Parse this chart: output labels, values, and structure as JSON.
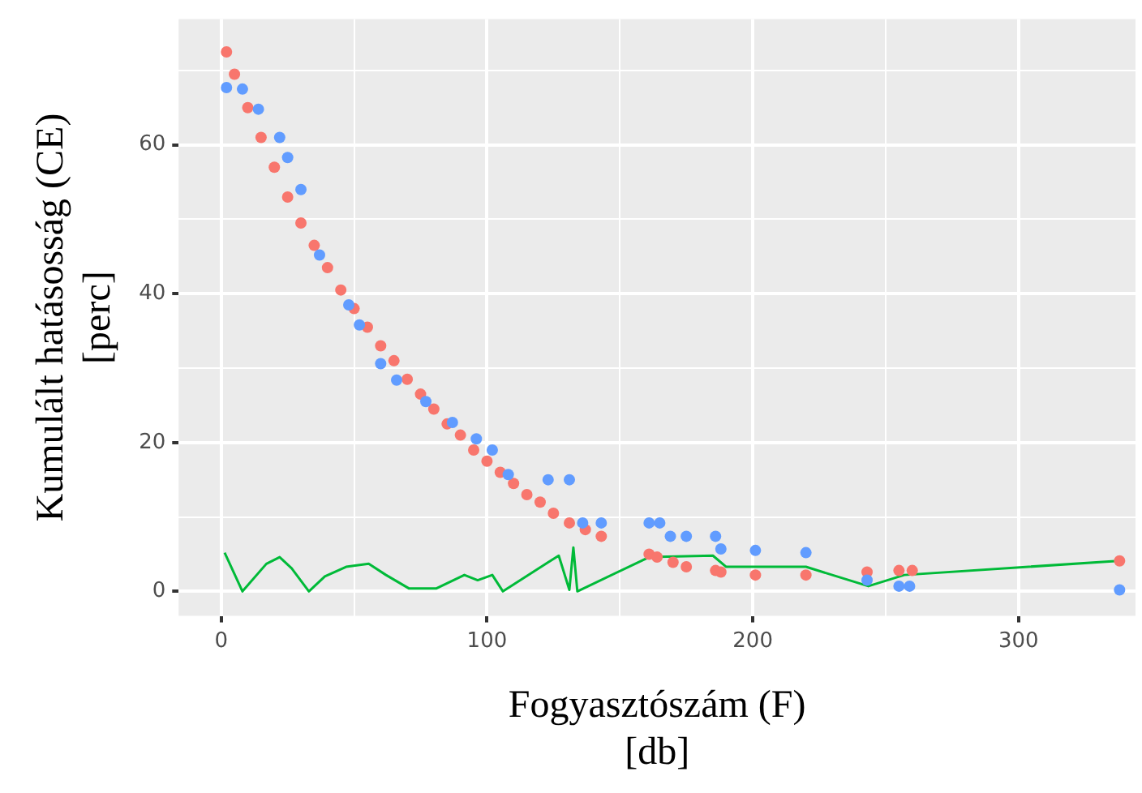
{
  "chart_data": {
    "type": "scatter",
    "xlabel": "Fogyasztószám (F)\n[db]",
    "ylabel": "Kumulált hatásosság (CE)\n[perc]",
    "xlim": [
      -16,
      344
    ],
    "ylim": [
      -3.3,
      76.9
    ],
    "xticks": [
      0,
      {
        "value": 50,
        "label": null
      },
      100,
      {
        "value": 150,
        "label": null
      },
      200,
      {
        "value": 250,
        "label": null
      },
      300
    ],
    "yticks": [
      0,
      {
        "value": 10,
        "label": null
      },
      20,
      {
        "value": 30,
        "label": null
      },
      40,
      {
        "value": 50,
        "label": null
      },
      60,
      {
        "value": 70,
        "label": null
      }
    ],
    "grid": true,
    "legend": false,
    "marker": "circle",
    "series": [
      {
        "color": "#619cff",
        "x": [
          2,
          8,
          14,
          22,
          25,
          30,
          37,
          48,
          52,
          60,
          66,
          77,
          87,
          96,
          102,
          108,
          123,
          131,
          136,
          143,
          161,
          165,
          169,
          175,
          186,
          188,
          201,
          220,
          243,
          255,
          259,
          338
        ],
        "values": [
          67.7,
          67.5,
          64.8,
          61,
          58.3,
          54,
          45.2,
          38.5,
          35.8,
          30.6,
          28.4,
          25.5,
          22.7,
          20.5,
          19,
          15.7,
          15,
          15,
          9.2,
          9.2,
          9.2,
          9.2,
          7.4,
          7.4,
          7.4,
          5.7,
          5.5,
          5.2,
          1.5,
          0.7,
          0.7,
          0.2
        ]
      },
      {
        "color": "#f8766d",
        "x": [
          2,
          5,
          10,
          15,
          20,
          25,
          30,
          35,
          40,
          45,
          50,
          55,
          60,
          65,
          70,
          75,
          80,
          85,
          90,
          95,
          100,
          105,
          110,
          115,
          120,
          125,
          131,
          137,
          143,
          161,
          164,
          170,
          175,
          186,
          188,
          201,
          220,
          243,
          255,
          260,
          338
        ],
        "values": [
          72.5,
          69.5,
          65,
          61,
          57,
          53,
          49.5,
          46.5,
          43.5,
          40.5,
          38,
          35.5,
          33,
          31,
          28.5,
          26.5,
          24.5,
          22.5,
          21,
          19,
          17.5,
          16,
          14.5,
          13,
          12,
          10.5,
          9.2,
          8.3,
          7.4,
          5,
          4.6,
          3.9,
          3.3,
          2.8,
          2.6,
          2.2,
          2.2,
          2.6,
          2.8,
          2.8,
          4.1
        ]
      },
      {
        "type": "line",
        "color": "#00ba38",
        "marker": "none",
        "x": [
          1.3,
          8,
          17,
          22,
          26.5,
          33,
          39,
          47,
          55.5,
          62,
          70.6,
          81,
          91.5,
          96.5,
          102,
          106,
          123,
          127,
          131,
          132.5,
          134,
          161,
          185,
          190,
          220,
          243.5,
          257,
          337.5
        ],
        "values": [
          5.2,
          0,
          3.7,
          4.6,
          3.1,
          0,
          2,
          3.3,
          3.7,
          2.2,
          0.4,
          0.4,
          2.2,
          1.5,
          2.2,
          0,
          3.9,
          4.8,
          0.2,
          5.9,
          0,
          4.6,
          4.8,
          3.3,
          3.3,
          0.7,
          2.2,
          4.1
        ]
      }
    ]
  }
}
